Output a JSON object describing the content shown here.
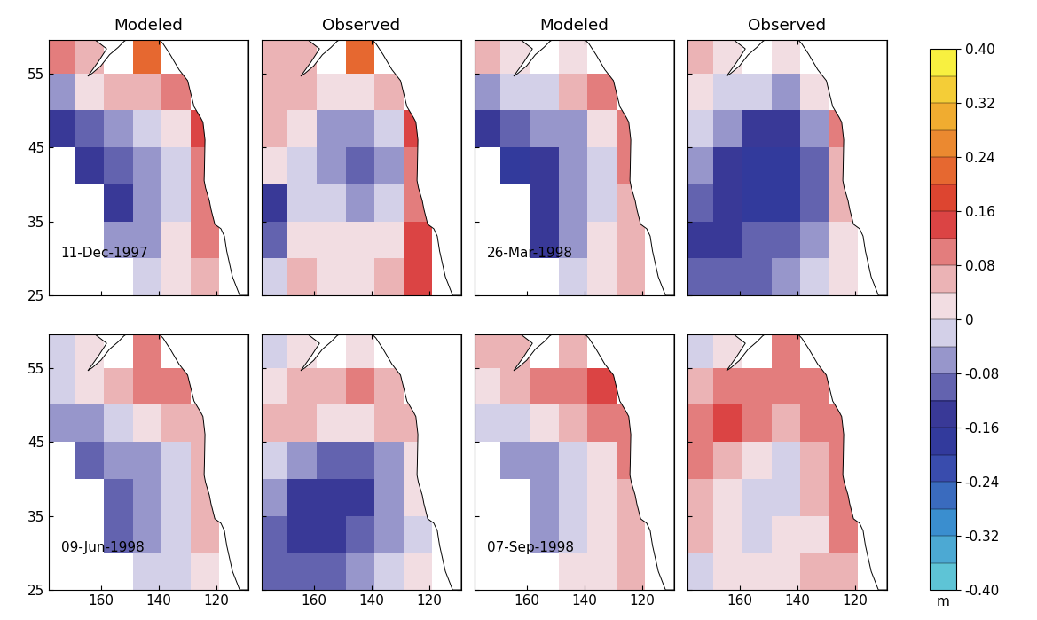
{
  "chart_data": [
    {
      "type": "heatmap",
      "title": "Modeled",
      "annotation": "11-Dec-1997",
      "tick_labels": "y",
      "x": [
        174,
        164,
        154,
        144,
        134,
        124,
        114
      ],
      "y": [
        27.5,
        32.5,
        37.5,
        42.5,
        47.5,
        52.5,
        57.5
      ],
      "xlim": [
        178,
        109
      ],
      "ylim": [
        25,
        59.5
      ],
      "xticks": [
        160,
        140,
        120
      ],
      "yticks": [
        25,
        35,
        45,
        55
      ],
      "cells": [
        [
          null,
          null,
          null,
          -0.02,
          0.02,
          0.06,
          null
        ],
        [
          null,
          null,
          -0.08,
          -0.06,
          0.0,
          0.08,
          null
        ],
        [
          null,
          null,
          -0.14,
          -0.08,
          -0.04,
          0.08,
          null
        ],
        [
          null,
          -0.14,
          -0.12,
          -0.08,
          -0.04,
          0.1,
          null
        ],
        [
          -0.16,
          -0.12,
          -0.08,
          -0.04,
          0.0,
          0.14,
          null
        ],
        [
          -0.06,
          0.02,
          0.04,
          0.04,
          0.08,
          null,
          null
        ],
        [
          0.08,
          0.06,
          null,
          0.22,
          null,
          null,
          null
        ]
      ]
    },
    {
      "type": "heatmap",
      "title": "Observed",
      "tick_labels": false,
      "x": [
        174,
        164,
        154,
        144,
        134,
        124,
        114
      ],
      "y": [
        27.5,
        32.5,
        37.5,
        42.5,
        47.5,
        52.5,
        57.5
      ],
      "xlim": [
        178,
        109
      ],
      "ylim": [
        25,
        59.5
      ],
      "xticks": [
        160,
        140,
        120
      ],
      "yticks": [
        25,
        35,
        45,
        55
      ],
      "cells": [
        [
          -0.04,
          0.04,
          0.02,
          0.02,
          0.04,
          0.14,
          null
        ],
        [
          -0.12,
          0.0,
          0.02,
          0.0,
          0.02,
          0.12,
          null
        ],
        [
          -0.14,
          -0.02,
          -0.04,
          -0.06,
          -0.02,
          0.1,
          null
        ],
        [
          0.02,
          -0.04,
          -0.08,
          -0.1,
          -0.06,
          0.1,
          null
        ],
        [
          0.04,
          0.0,
          -0.06,
          -0.08,
          -0.02,
          0.14,
          null
        ],
        [
          0.06,
          0.04,
          0.02,
          0.0,
          0.06,
          null,
          null
        ],
        [
          0.06,
          0.04,
          null,
          0.2,
          null,
          null,
          null
        ]
      ]
    },
    {
      "type": "heatmap",
      "title": "Modeled",
      "annotation": "26-Mar-1998",
      "tick_labels": false,
      "x": [
        174,
        164,
        154,
        144,
        134,
        124,
        114
      ],
      "y": [
        27.5,
        32.5,
        37.5,
        42.5,
        47.5,
        52.5,
        57.5
      ],
      "xlim": [
        178,
        109
      ],
      "ylim": [
        25,
        59.5
      ],
      "xticks": [
        160,
        140,
        120
      ],
      "yticks": [
        25,
        35,
        45,
        55
      ],
      "cells": [
        [
          null,
          null,
          null,
          -0.04,
          0.0,
          0.04,
          null
        ],
        [
          null,
          null,
          -0.14,
          -0.06,
          0.0,
          0.06,
          null
        ],
        [
          null,
          null,
          -0.16,
          -0.08,
          -0.02,
          0.06,
          null
        ],
        [
          null,
          -0.18,
          -0.14,
          -0.06,
          -0.02,
          0.08,
          null
        ],
        [
          -0.16,
          -0.12,
          -0.08,
          -0.06,
          0.02,
          0.1,
          null
        ],
        [
          -0.06,
          -0.04,
          -0.02,
          0.04,
          0.1,
          null,
          null
        ],
        [
          0.06,
          0.02,
          null,
          0.02,
          null,
          null,
          null
        ]
      ]
    },
    {
      "type": "heatmap",
      "title": "Observed",
      "tick_labels": false,
      "x": [
        174,
        164,
        154,
        144,
        134,
        124,
        114
      ],
      "y": [
        27.5,
        32.5,
        37.5,
        42.5,
        47.5,
        52.5,
        57.5
      ],
      "xlim": [
        178,
        109
      ],
      "ylim": [
        25,
        59.5
      ],
      "xticks": [
        160,
        140,
        120
      ],
      "yticks": [
        25,
        35,
        45,
        55
      ],
      "cells": [
        [
          -0.12,
          -0.1,
          -0.1,
          -0.08,
          -0.04,
          0.0,
          null
        ],
        [
          -0.14,
          -0.14,
          -0.12,
          -0.12,
          -0.06,
          0.02,
          null
        ],
        [
          -0.1,
          -0.16,
          -0.18,
          -0.18,
          -0.1,
          0.04,
          null
        ],
        [
          -0.06,
          -0.14,
          -0.2,
          -0.2,
          -0.12,
          0.06,
          null
        ],
        [
          -0.02,
          -0.08,
          -0.16,
          -0.16,
          -0.06,
          0.08,
          null
        ],
        [
          0.0,
          -0.02,
          -0.04,
          -0.06,
          0.0,
          null,
          null
        ],
        [
          0.04,
          0.02,
          null,
          0.0,
          null,
          null,
          null
        ]
      ]
    },
    {
      "type": "heatmap",
      "annotation": "09-Jun-1998",
      "tick_labels": true,
      "x": [
        174,
        164,
        154,
        144,
        134,
        124,
        114
      ],
      "y": [
        27.5,
        32.5,
        37.5,
        42.5,
        47.5,
        52.5,
        57.5
      ],
      "xlim": [
        178,
        109
      ],
      "ylim": [
        25,
        59.5
      ],
      "xticks": [
        160,
        140,
        120
      ],
      "yticks": [
        25,
        35,
        45,
        55
      ],
      "cells": [
        [
          null,
          null,
          null,
          -0.04,
          -0.02,
          0.02,
          null
        ],
        [
          null,
          null,
          -0.1,
          -0.08,
          -0.04,
          0.04,
          null
        ],
        [
          null,
          null,
          -0.1,
          -0.08,
          -0.04,
          0.06,
          null
        ],
        [
          null,
          -0.1,
          -0.08,
          -0.06,
          -0.02,
          0.06,
          null
        ],
        [
          -0.06,
          -0.06,
          -0.04,
          0.0,
          0.04,
          0.06,
          null
        ],
        [
          -0.02,
          0.0,
          0.04,
          0.08,
          0.08,
          null,
          null
        ],
        [
          -0.02,
          0.02,
          null,
          0.08,
          null,
          null,
          null
        ]
      ]
    },
    {
      "type": "heatmap",
      "tick_labels": "x",
      "x": [
        174,
        164,
        154,
        144,
        134,
        124,
        114
      ],
      "y": [
        27.5,
        32.5,
        37.5,
        42.5,
        47.5,
        52.5,
        57.5
      ],
      "xlim": [
        178,
        109
      ],
      "ylim": [
        25,
        59.5
      ],
      "xticks": [
        160,
        140,
        120
      ],
      "yticks": [
        25,
        35,
        45,
        55
      ],
      "cells": [
        [
          -0.12,
          -0.1,
          -0.1,
          -0.06,
          -0.02,
          0.0,
          null
        ],
        [
          -0.1,
          -0.14,
          -0.16,
          -0.12,
          -0.06,
          -0.02,
          null
        ],
        [
          -0.06,
          -0.14,
          -0.16,
          -0.14,
          -0.08,
          0.0,
          null
        ],
        [
          -0.02,
          -0.06,
          -0.12,
          -0.12,
          -0.06,
          0.02,
          null
        ],
        [
          0.04,
          0.04,
          0.02,
          0.0,
          0.04,
          0.04,
          null
        ],
        [
          0.02,
          0.04,
          0.06,
          0.08,
          0.04,
          null,
          null
        ],
        [
          -0.02,
          0.0,
          null,
          0.02,
          null,
          null,
          null
        ]
      ]
    },
    {
      "type": "heatmap",
      "annotation": "07-Sep-1998",
      "tick_labels": "x",
      "x": [
        174,
        164,
        154,
        144,
        134,
        124,
        114
      ],
      "y": [
        27.5,
        32.5,
        37.5,
        42.5,
        47.5,
        52.5,
        57.5
      ],
      "xlim": [
        178,
        109
      ],
      "ylim": [
        25,
        59.5
      ],
      "xticks": [
        160,
        140,
        120
      ],
      "yticks": [
        25,
        35,
        45,
        55
      ],
      "cells": [
        [
          null,
          null,
          null,
          0.0,
          0.02,
          0.04,
          null
        ],
        [
          null,
          null,
          -0.06,
          -0.02,
          0.02,
          0.06,
          null
        ],
        [
          null,
          null,
          -0.08,
          -0.04,
          0.0,
          0.06,
          null
        ],
        [
          null,
          -0.08,
          -0.06,
          -0.02,
          0.02,
          0.08,
          null
        ],
        [
          -0.04,
          -0.02,
          0.0,
          0.04,
          0.08,
          0.1,
          null
        ],
        [
          0.02,
          0.06,
          0.08,
          0.1,
          0.12,
          null,
          null
        ],
        [
          0.04,
          0.04,
          null,
          0.06,
          null,
          null,
          null
        ]
      ]
    },
    {
      "type": "heatmap",
      "tick_labels": "x",
      "x": [
        174,
        164,
        154,
        144,
        134,
        124,
        114
      ],
      "y": [
        27.5,
        32.5,
        37.5,
        42.5,
        47.5,
        52.5,
        57.5
      ],
      "xlim": [
        178,
        109
      ],
      "ylim": [
        25,
        59.5
      ],
      "xticks": [
        160,
        140,
        120
      ],
      "yticks": [
        25,
        35,
        45,
        55
      ],
      "cells": [
        [
          -0.02,
          0.02,
          0.02,
          0.0,
          0.04,
          0.06,
          null
        ],
        [
          0.04,
          0.0,
          -0.02,
          0.0,
          0.02,
          0.08,
          null
        ],
        [
          0.06,
          0.02,
          -0.04,
          -0.02,
          0.04,
          0.1,
          null
        ],
        [
          0.08,
          0.06,
          0.0,
          -0.02,
          0.04,
          0.1,
          null
        ],
        [
          0.1,
          0.12,
          0.08,
          0.06,
          0.08,
          0.1,
          null
        ],
        [
          0.04,
          0.08,
          0.1,
          0.08,
          0.08,
          null,
          null
        ],
        [
          -0.02,
          0.02,
          null,
          0.08,
          null,
          null,
          null
        ]
      ]
    }
  ],
  "colorbar": {
    "range": [
      -0.4,
      0.4
    ],
    "label": "m",
    "ticks": [
      {
        "value": -0.4,
        "label": "-0.40"
      },
      -0.32,
      -0.24,
      -0.16,
      -0.08,
      0,
      0.08,
      0.16,
      0.24,
      0.32,
      {
        "value": 0.4,
        "label": "0.40"
      }
    ]
  }
}
